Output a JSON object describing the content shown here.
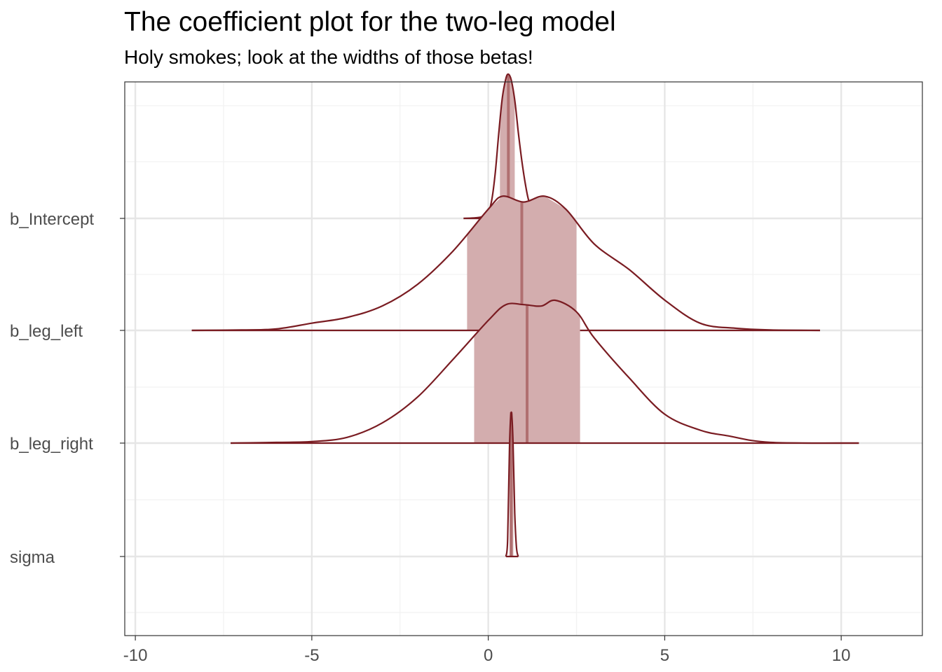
{
  "chart_data": {
    "type": "density-interval",
    "title": "The coefficient plot for the two-leg model",
    "subtitle": "Holy smokes; look at the widths of those betas!",
    "xlabel": "",
    "ylabel": "",
    "xlim": [
      -10.3,
      12.3
    ],
    "x_ticks": [
      -10,
      -5,
      0,
      5,
      10
    ],
    "x_tick_labels": [
      "-10",
      "-5",
      "0",
      "5",
      "10"
    ],
    "grid": true,
    "colors": {
      "line": "#7a1c22",
      "interval_fill": "#d3adae",
      "median": "#b06f70",
      "grid_major": "#e6e6e6",
      "grid_minor": "#f2f2f2",
      "panel_border": "#333333"
    },
    "parameters": [
      {
        "name": "b_Intercept",
        "median": 0.57,
        "interval": [
          0.33,
          0.75
        ],
        "density": [
          [
            -0.7,
            0.0
          ],
          [
            -0.2,
            0.01
          ],
          [
            0.0,
            0.05
          ],
          [
            0.1,
            0.13
          ],
          [
            0.2,
            0.32
          ],
          [
            0.3,
            0.6
          ],
          [
            0.4,
            0.84
          ],
          [
            0.5,
            0.97
          ],
          [
            0.57,
            1.0
          ],
          [
            0.65,
            0.96
          ],
          [
            0.75,
            0.82
          ],
          [
            0.85,
            0.6
          ],
          [
            0.95,
            0.4
          ],
          [
            1.05,
            0.24
          ],
          [
            1.15,
            0.12
          ],
          [
            1.3,
            0.05
          ],
          [
            1.5,
            0.01
          ],
          [
            1.7,
            0.0
          ]
        ]
      },
      {
        "name": "b_leg_left",
        "median": 0.95,
        "interval": [
          -0.6,
          2.5
        ],
        "density": [
          [
            -8.4,
            0.0
          ],
          [
            -7,
            0.003
          ],
          [
            -6,
            0.01
          ],
          [
            -5,
            0.05
          ],
          [
            -4,
            0.09
          ],
          [
            -3,
            0.17
          ],
          [
            -2,
            0.32
          ],
          [
            -1,
            0.55
          ],
          [
            0,
            0.84
          ],
          [
            0.4,
            0.93
          ],
          [
            1,
            0.89
          ],
          [
            1.6,
            0.93
          ],
          [
            2.2,
            0.84
          ],
          [
            3,
            0.6
          ],
          [
            4,
            0.42
          ],
          [
            5,
            0.21
          ],
          [
            6,
            0.05
          ],
          [
            7,
            0.015
          ],
          [
            8,
            0.003
          ],
          [
            9.4,
            0.0
          ]
        ]
      },
      {
        "name": "b_leg_right",
        "median": 1.1,
        "interval": [
          -0.4,
          2.6
        ],
        "density": [
          [
            -7.3,
            0.0
          ],
          [
            -6,
            0.005
          ],
          [
            -5,
            0.01
          ],
          [
            -4,
            0.04
          ],
          [
            -3,
            0.14
          ],
          [
            -2,
            0.32
          ],
          [
            -1,
            0.58
          ],
          [
            0,
            0.85
          ],
          [
            0.5,
            0.96
          ],
          [
            1,
            0.96
          ],
          [
            1.5,
            0.95
          ],
          [
            1.9,
            0.99
          ],
          [
            2.5,
            0.91
          ],
          [
            3,
            0.73
          ],
          [
            4,
            0.45
          ],
          [
            5,
            0.2
          ],
          [
            6,
            0.09
          ],
          [
            6.8,
            0.05
          ],
          [
            8,
            0.005
          ],
          [
            10.5,
            0.0
          ]
        ]
      },
      {
        "name": "sigma",
        "median": 0.65,
        "interval": [
          0.6,
          0.71
        ],
        "density": [
          [
            0.5,
            0.0
          ],
          [
            0.55,
            0.12
          ],
          [
            0.6,
            0.75
          ],
          [
            0.65,
            1.0
          ],
          [
            0.7,
            0.8
          ],
          [
            0.75,
            0.3
          ],
          [
            0.8,
            0.06
          ],
          [
            0.85,
            0.0
          ]
        ]
      }
    ]
  }
}
